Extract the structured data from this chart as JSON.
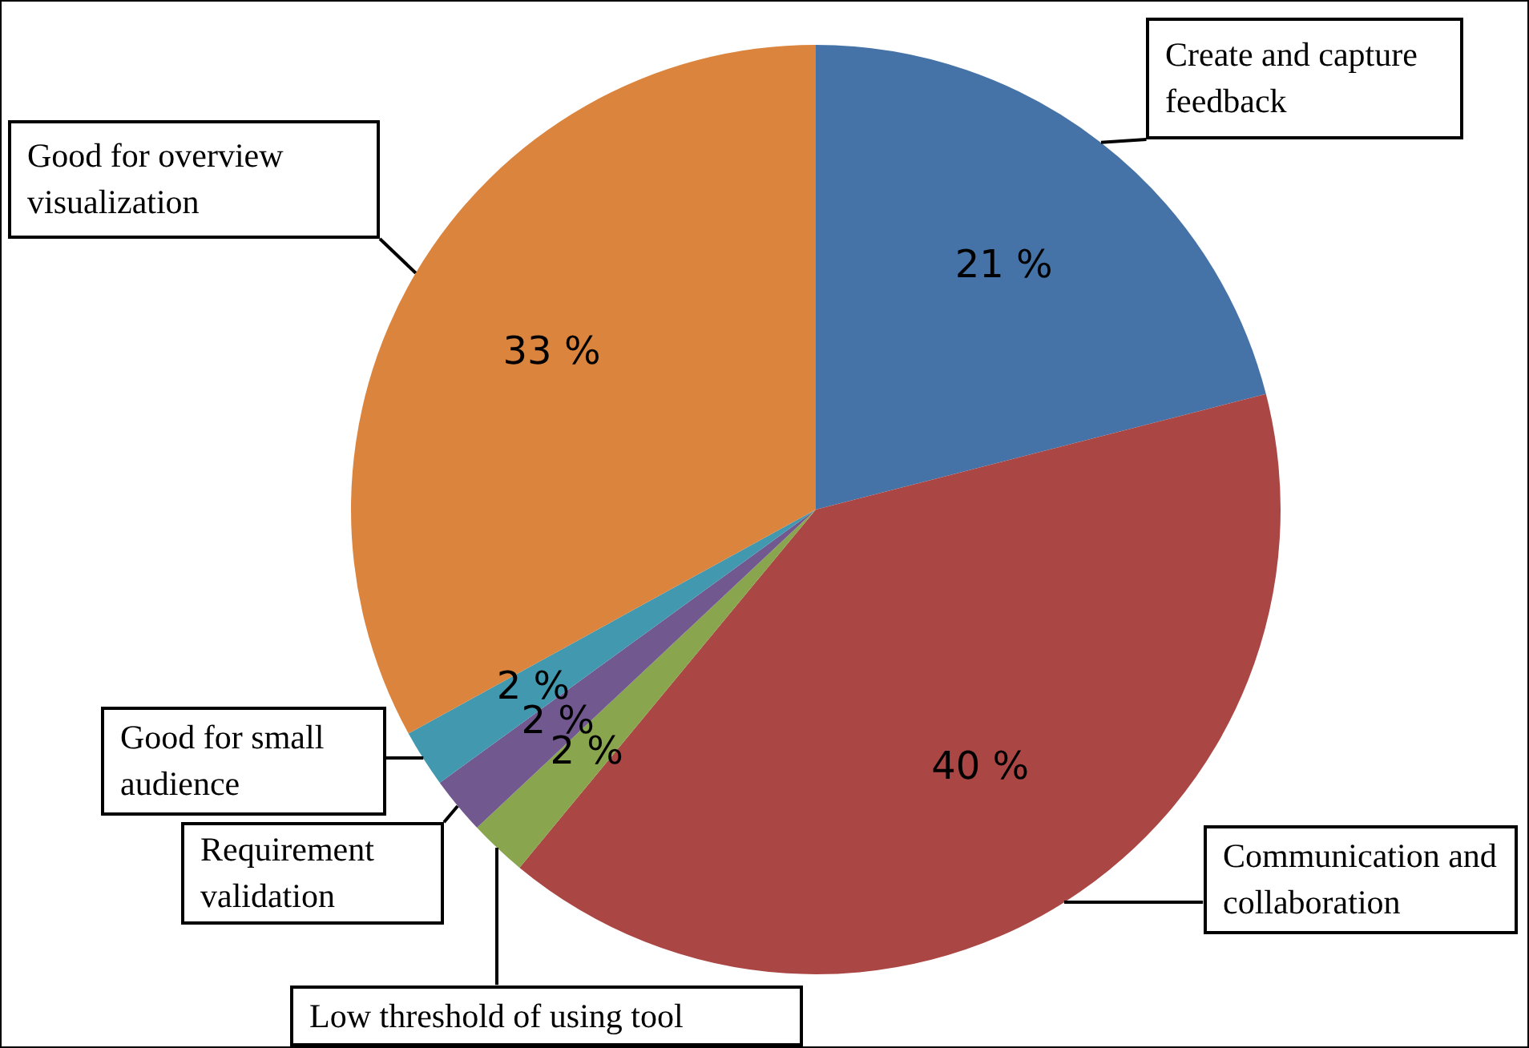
{
  "chart_data": {
    "type": "pie",
    "categories": [
      "Create and capture feedback",
      "Communication and collaboration",
      "Low threshold of using tool",
      "Requirement validation",
      "Good for small audience",
      "Good for overview visualization"
    ],
    "values": [
      21,
      40,
      2,
      2,
      2,
      33
    ],
    "colors": [
      "#4572a7",
      "#aa4643",
      "#89a54e",
      "#71588f",
      "#4198af",
      "#db843d"
    ],
    "value_labels": [
      "21 %",
      "40 %",
      "2 %",
      "2 %",
      "2 %",
      "33 %"
    ],
    "legend": false
  }
}
